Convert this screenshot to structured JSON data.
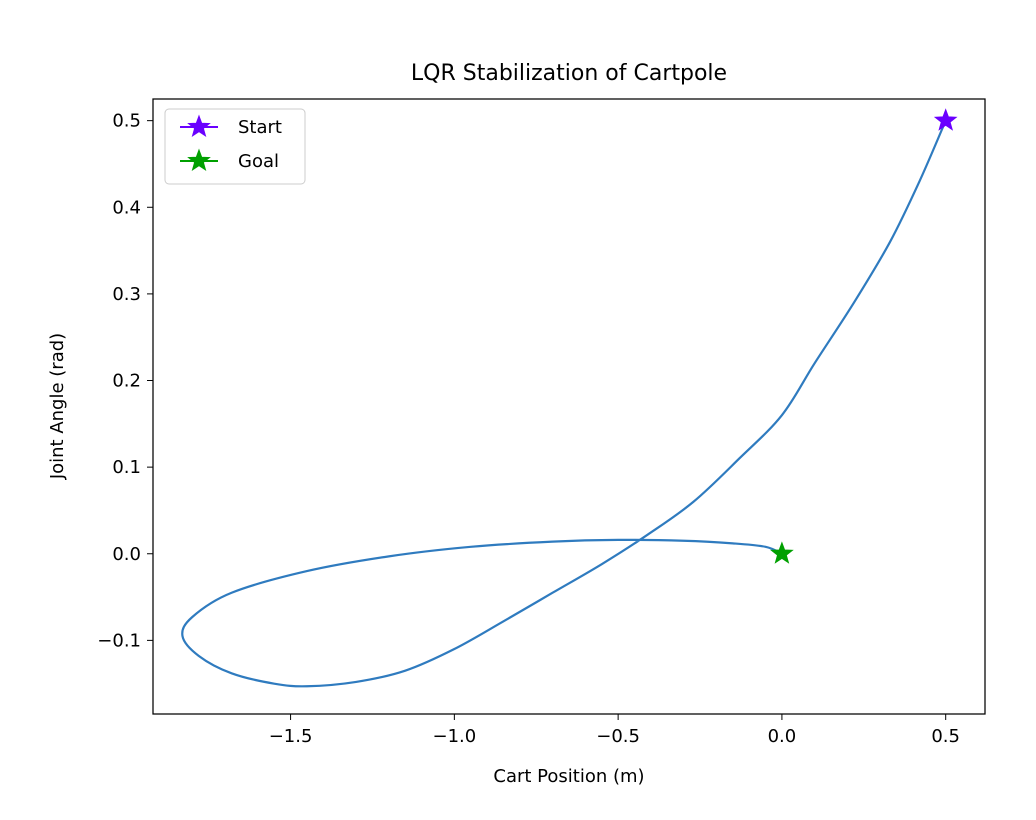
{
  "chart_data": {
    "type": "line",
    "title": "LQR Stabilization of Cartpole",
    "xlabel": "Cart Position (m)",
    "ylabel": "Joint Angle (rad)",
    "xlim": [
      -1.92,
      0.62
    ],
    "ylim": [
      -0.185,
      0.525
    ],
    "xticks": [
      -1.5,
      -1.0,
      -0.5,
      0.0,
      0.5
    ],
    "xtick_labels": [
      "−1.5",
      "−1.0",
      "−0.5",
      "0.0",
      "0.5"
    ],
    "yticks": [
      -0.1,
      0.0,
      0.1,
      0.2,
      0.3,
      0.4,
      0.5
    ],
    "ytick_labels": [
      "−0.1",
      "0.0",
      "0.1",
      "0.2",
      "0.3",
      "0.4",
      "0.5"
    ],
    "grid": false,
    "legend_position": "top-left",
    "series": [
      {
        "color": "#2f7bbf",
        "x": [
          0.5,
          0.42,
          0.33,
          0.22,
          0.1,
          0.0,
          -0.13,
          -0.27,
          -0.41,
          -0.55,
          -0.7,
          -0.85,
          -1.0,
          -1.15,
          -1.3,
          -1.45,
          -1.55,
          -1.68,
          -1.78,
          -1.83,
          -1.8,
          -1.68,
          -1.45,
          -1.2,
          -0.95,
          -0.7,
          -0.5,
          -0.3,
          -0.15,
          -0.05,
          0.0
        ],
        "y": [
          0.5,
          0.43,
          0.36,
          0.29,
          0.22,
          0.16,
          0.11,
          0.06,
          0.022,
          -0.012,
          -0.045,
          -0.078,
          -0.11,
          -0.135,
          -0.148,
          -0.153,
          -0.15,
          -0.138,
          -0.118,
          -0.095,
          -0.073,
          -0.045,
          -0.02,
          -0.003,
          0.008,
          0.014,
          0.016,
          0.015,
          0.012,
          0.008,
          0.0
        ]
      }
    ],
    "markers": [
      {
        "label": "Start",
        "x": 0.5,
        "y": 0.5,
        "color": "#6a00ff"
      },
      {
        "label": "Goal",
        "x": 0.0,
        "y": 0.0,
        "color": "#00a000"
      }
    ]
  }
}
